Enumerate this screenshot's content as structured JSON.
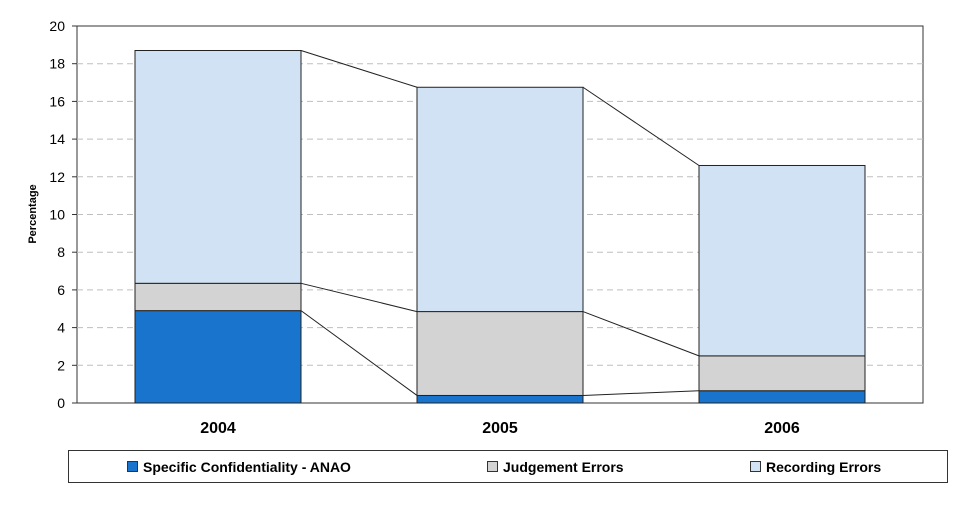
{
  "chart_data": {
    "type": "bar",
    "stacked": true,
    "categories": [
      "2004",
      "2005",
      "2006"
    ],
    "series": [
      {
        "name": "Specific Confidentiality - ANAO",
        "values": [
          4.9,
          0.4,
          0.65
        ],
        "color": "#1874CD"
      },
      {
        "name": "Judgement Errors",
        "values": [
          1.45,
          4.45,
          1.85
        ],
        "color": "#D3D3D3"
      },
      {
        "name": "Recording Errors",
        "values": [
          12.35,
          11.9,
          10.1
        ],
        "color": "#D1E2F4"
      }
    ],
    "ylabel": "Percentage",
    "xlabel": "",
    "ylim": [
      0,
      20
    ],
    "yticks": [
      "0",
      "2",
      "4",
      "6",
      "8",
      "10",
      "12",
      "14",
      "16",
      "18",
      "20"
    ],
    "grid": true,
    "series_lines": true,
    "legend_position": "bottom"
  }
}
